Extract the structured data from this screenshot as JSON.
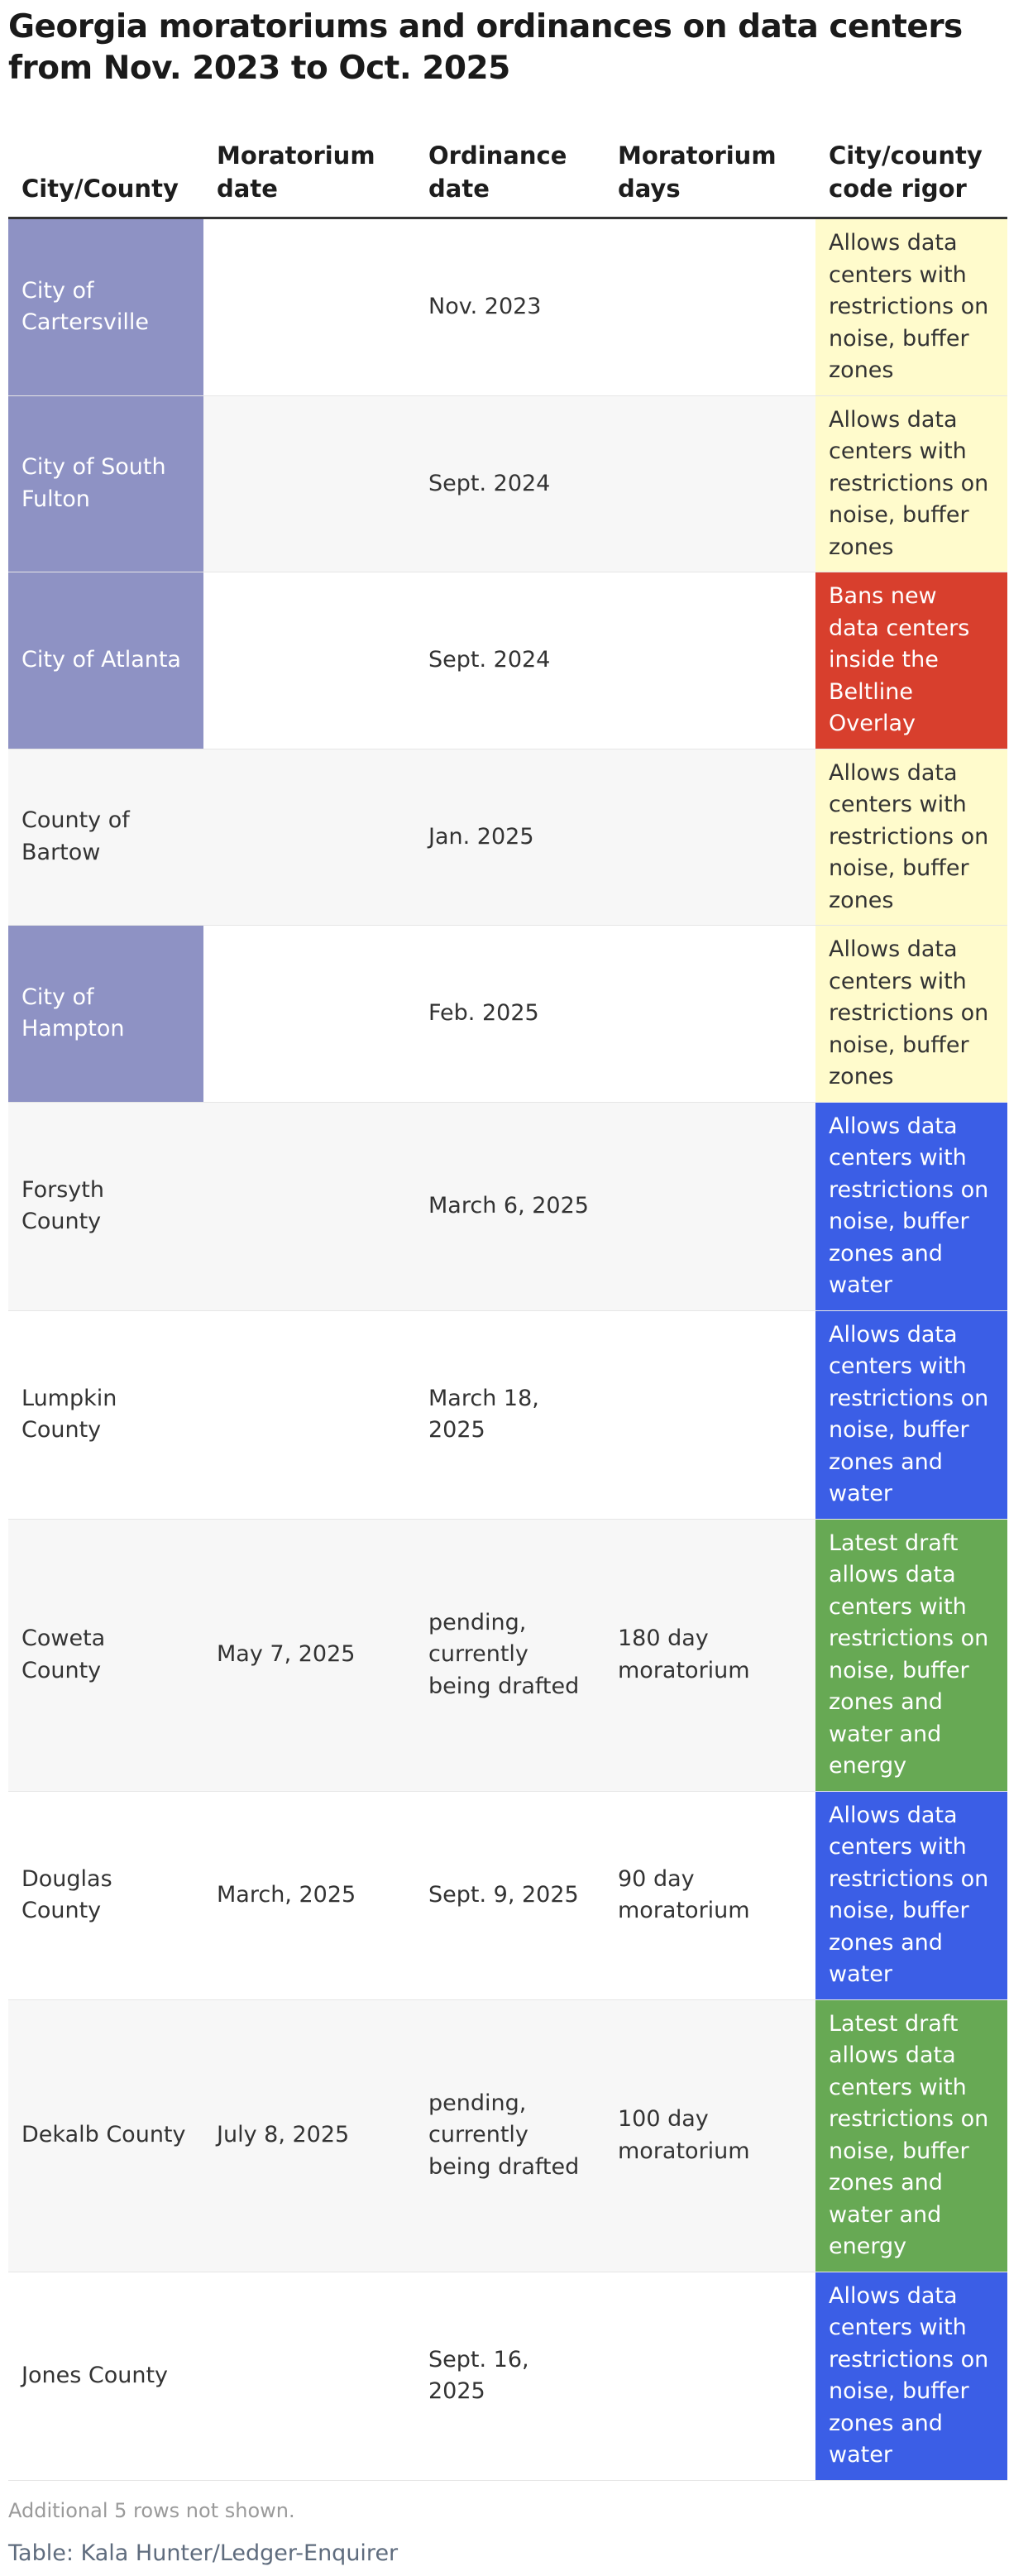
{
  "title": "Georgia moratoriums and ordinances on data centers from Nov. 2023 to Oct. 2025",
  "columns": [
    "City/County",
    "Moratorium date",
    "Ordinance date",
    "Moratorium days",
    "City/county code rigor"
  ],
  "colors": {
    "city_highlight": "#8e92c4",
    "yellow": "#fffbcc",
    "red": "#d83f2d",
    "blue": "#3b5ee6",
    "green": "#67a954"
  },
  "rows": [
    {
      "city": "City of Cartersville",
      "moratorium_date": "",
      "ordinance_date": "Nov. 2023",
      "moratorium_days": "",
      "rigor": "Allows data centers with restrictions on noise, buffer zones",
      "rigor_color": "yellow",
      "city_highlight": true
    },
    {
      "city": "City of South Fulton",
      "moratorium_date": "",
      "ordinance_date": "Sept. 2024",
      "moratorium_days": "",
      "rigor": "Allows data centers with restrictions on noise, buffer zones",
      "rigor_color": "yellow",
      "city_highlight": true
    },
    {
      "city": "City of Atlanta",
      "moratorium_date": "",
      "ordinance_date": "Sept. 2024",
      "moratorium_days": "",
      "rigor": "Bans new data centers inside the Beltline Overlay",
      "rigor_color": "red",
      "city_highlight": true
    },
    {
      "city": "County of Bartow",
      "moratorium_date": "",
      "ordinance_date": "Jan. 2025",
      "moratorium_days": "",
      "rigor": "Allows data centers with restrictions on noise, buffer zones",
      "rigor_color": "yellow",
      "city_highlight": false
    },
    {
      "city": "City of Hampton",
      "moratorium_date": "",
      "ordinance_date": "Feb. 2025",
      "moratorium_days": "",
      "rigor": "Allows data centers with restrictions on noise, buffer zones",
      "rigor_color": "yellow",
      "city_highlight": true
    },
    {
      "city": "Forsyth County",
      "moratorium_date": "",
      "ordinance_date": "March 6, 2025",
      "moratorium_days": "",
      "rigor": "Allows data centers with restrictions on noise, buffer zones and water",
      "rigor_color": "blue",
      "city_highlight": false
    },
    {
      "city": "Lumpkin County",
      "moratorium_date": "",
      "ordinance_date": "March 18, 2025",
      "moratorium_days": "",
      "rigor": "Allows data centers with restrictions on noise, buffer zones and water",
      "rigor_color": "blue",
      "city_highlight": false
    },
    {
      "city": "Coweta County",
      "moratorium_date": "May 7, 2025",
      "ordinance_date": "pending, currently being drafted",
      "moratorium_days": "180 day moratorium",
      "rigor": "Latest draft allows data centers with restrictions on noise, buffer zones and water and energy",
      "rigor_color": "green",
      "city_highlight": false
    },
    {
      "city": "Douglas County",
      "moratorium_date": "March, 2025",
      "ordinance_date": "Sept. 9, 2025",
      "moratorium_days": "90 day moratorium",
      "rigor": "Allows data centers with restrictions on noise, buffer zones and water",
      "rigor_color": "blue",
      "city_highlight": false
    },
    {
      "city": "Dekalb County",
      "moratorium_date": "July 8, 2025",
      "ordinance_date": "pending, currently being drafted",
      "moratorium_days": "100 day moratorium",
      "rigor": "Latest draft allows data centers with restrictions on noise, buffer zones and water and energy",
      "rigor_color": "green",
      "city_highlight": false
    },
    {
      "city": "Jones County",
      "moratorium_date": "",
      "ordinance_date": "Sept. 16, 2025",
      "moratorium_days": "",
      "rigor": "Allows data centers with restrictions on noise, buffer zones and water",
      "rigor_color": "blue",
      "city_highlight": false
    }
  ],
  "note": "Additional 5 rows not shown.",
  "source": "Table: Kala Hunter/Ledger-Enquirer"
}
